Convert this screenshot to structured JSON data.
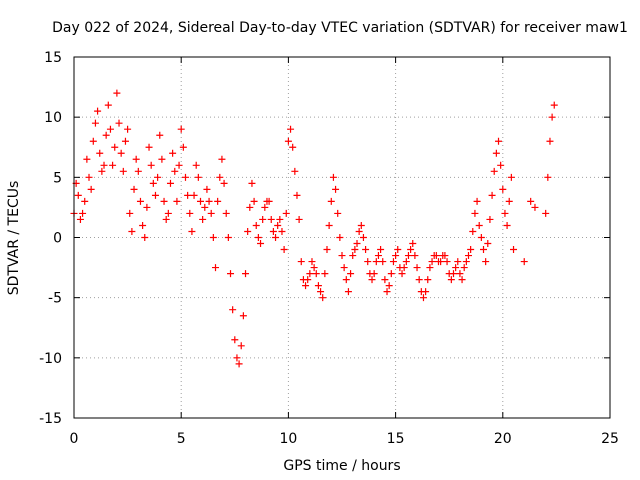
{
  "chart_data": {
    "type": "scatter",
    "title": "Day 022 of 2024, Sidereal Day-to-day VTEC variation (SDTVAR) for receiver maw1",
    "xlabel": "GPS time / hours",
    "ylabel": "SDTVAR / TECUs",
    "xlim": [
      0,
      25
    ],
    "ylim": [
      -15,
      15
    ],
    "xticks": [
      0,
      5,
      10,
      15,
      20,
      25
    ],
    "yticks": [
      -15,
      -10,
      -5,
      0,
      5,
      10,
      15
    ],
    "xtick_labels": [
      "0",
      "5",
      "10",
      "15",
      "20",
      "25"
    ],
    "ytick_labels": [
      "-15",
      "-10",
      "-5",
      "0",
      "5",
      "10",
      "15"
    ],
    "grid": true,
    "marker": "+",
    "color": "#ff0000",
    "series": [
      {
        "name": "SDTVAR",
        "x": [
          0.0,
          0.1,
          0.2,
          0.3,
          0.4,
          0.5,
          0.6,
          0.7,
          0.8,
          0.9,
          1.0,
          1.1,
          1.2,
          1.3,
          1.4,
          1.5,
          1.6,
          1.7,
          1.8,
          1.9,
          2.0,
          2.1,
          2.2,
          2.3,
          2.4,
          2.5,
          2.6,
          2.7,
          2.8,
          2.9,
          3.0,
          3.1,
          3.2,
          3.3,
          3.4,
          3.5,
          3.6,
          3.7,
          3.8,
          3.9,
          4.0,
          4.1,
          4.2,
          4.3,
          4.4,
          4.5,
          4.6,
          4.7,
          4.8,
          4.9,
          5.0,
          5.1,
          5.2,
          5.3,
          5.4,
          5.5,
          5.6,
          5.7,
          5.8,
          5.9,
          6.0,
          6.1,
          6.2,
          6.3,
          6.4,
          6.5,
          6.6,
          6.7,
          6.8,
          6.9,
          7.0,
          7.1,
          7.2,
          7.3,
          7.4,
          7.5,
          7.6,
          7.7,
          7.8,
          7.9,
          8.0,
          8.1,
          8.2,
          8.3,
          8.4,
          8.5,
          8.6,
          8.7,
          8.8,
          8.9,
          9.0,
          9.1,
          9.2,
          9.3,
          9.4,
          9.5,
          9.6,
          9.7,
          9.8,
          9.9,
          10.0,
          10.1,
          10.2,
          10.3,
          10.4,
          10.5,
          10.6,
          10.7,
          10.8,
          10.9,
          11.0,
          11.1,
          11.2,
          11.3,
          11.4,
          11.5,
          11.6,
          11.7,
          11.8,
          11.9,
          12.0,
          12.1,
          12.2,
          12.3,
          12.4,
          12.5,
          12.6,
          12.7,
          12.8,
          12.9,
          13.0,
          13.1,
          13.2,
          13.3,
          13.4,
          13.5,
          13.6,
          13.7,
          13.8,
          13.9,
          14.0,
          14.1,
          14.2,
          14.3,
          14.4,
          14.5,
          14.6,
          14.7,
          14.8,
          14.9,
          15.0,
          15.1,
          15.2,
          15.3,
          15.4,
          15.5,
          15.6,
          15.7,
          15.8,
          15.9,
          16.0,
          16.1,
          16.2,
          16.3,
          16.4,
          16.5,
          16.6,
          16.7,
          16.8,
          16.9,
          17.0,
          17.1,
          17.2,
          17.3,
          17.4,
          17.5,
          17.6,
          17.7,
          17.8,
          17.9,
          18.0,
          18.1,
          18.2,
          18.3,
          18.4,
          18.5,
          18.6,
          18.7,
          18.8,
          18.9,
          19.0,
          19.1,
          19.2,
          19.3,
          19.4,
          19.5,
          19.6,
          19.7,
          19.8,
          19.9,
          20.0,
          20.1,
          20.2,
          20.3,
          20.4,
          20.5,
          21.0,
          21.3,
          21.5,
          22.0,
          22.1,
          22.2,
          22.3,
          22.4
        ],
        "y": [
          2.0,
          4.5,
          3.5,
          1.5,
          2.0,
          3.0,
          6.5,
          5.0,
          4.0,
          8.0,
          9.5,
          10.5,
          7.0,
          5.5,
          6.0,
          8.5,
          11.0,
          9.0,
          6.0,
          7.5,
          12.0,
          9.5,
          7.0,
          5.5,
          8.0,
          9.0,
          2.0,
          0.5,
          4.0,
          6.5,
          5.5,
          3.0,
          1.0,
          0.0,
          2.5,
          7.5,
          6.0,
          4.5,
          3.5,
          5.0,
          8.5,
          6.5,
          3.0,
          1.5,
          2.0,
          4.5,
          7.0,
          5.5,
          3.0,
          6.0,
          9.0,
          7.5,
          5.0,
          3.5,
          2.0,
          0.5,
          3.5,
          6.0,
          5.0,
          3.0,
          1.5,
          2.5,
          4.0,
          3.0,
          2.0,
          0.0,
          -2.5,
          3.0,
          5.0,
          6.5,
          4.5,
          2.0,
          0.0,
          -3.0,
          -6.0,
          -8.5,
          -10.0,
          -10.5,
          -9.0,
          -6.5,
          -3.0,
          0.5,
          2.5,
          4.5,
          3.0,
          1.0,
          0.0,
          -0.5,
          1.5,
          2.5,
          3.0,
          3.0,
          1.5,
          0.5,
          0.0,
          1.0,
          1.5,
          0.5,
          -1.0,
          2.0,
          8.0,
          9.0,
          7.5,
          5.5,
          3.5,
          1.5,
          -2.0,
          -3.5,
          -4.0,
          -3.5,
          -3.0,
          -2.0,
          -2.5,
          -3.0,
          -4.0,
          -4.5,
          -5.0,
          -3.0,
          -1.0,
          1.0,
          3.0,
          5.0,
          4.0,
          2.0,
          0.0,
          -1.5,
          -2.5,
          -3.5,
          -4.5,
          -3.0,
          -1.5,
          -1.0,
          -0.5,
          0.5,
          1.0,
          0.0,
          -1.0,
          -2.0,
          -3.0,
          -3.5,
          -3.0,
          -2.0,
          -1.5,
          -1.0,
          -2.0,
          -3.5,
          -4.5,
          -4.0,
          -3.0,
          -2.0,
          -1.5,
          -1.0,
          -2.5,
          -3.0,
          -2.5,
          -2.0,
          -1.5,
          -1.0,
          -0.5,
          -1.5,
          -2.5,
          -3.5,
          -4.5,
          -5.0,
          -4.5,
          -3.5,
          -2.5,
          -2.0,
          -1.5,
          -1.5,
          -2.0,
          -2.0,
          -1.5,
          -1.5,
          -2.0,
          -3.0,
          -3.5,
          -3.0,
          -2.5,
          -2.0,
          -3.0,
          -3.5,
          -2.5,
          -2.0,
          -1.5,
          -1.0,
          0.5,
          2.0,
          3.0,
          1.0,
          0.0,
          -1.0,
          -2.0,
          -0.5,
          1.5,
          3.5,
          5.5,
          7.0,
          8.0,
          6.0,
          4.0,
          2.0,
          1.0,
          3.0,
          5.0,
          -1.0,
          -2.0,
          3.0,
          2.5,
          2.0,
          5.0,
          8.0,
          10.0,
          11.0
        ]
      }
    ]
  }
}
